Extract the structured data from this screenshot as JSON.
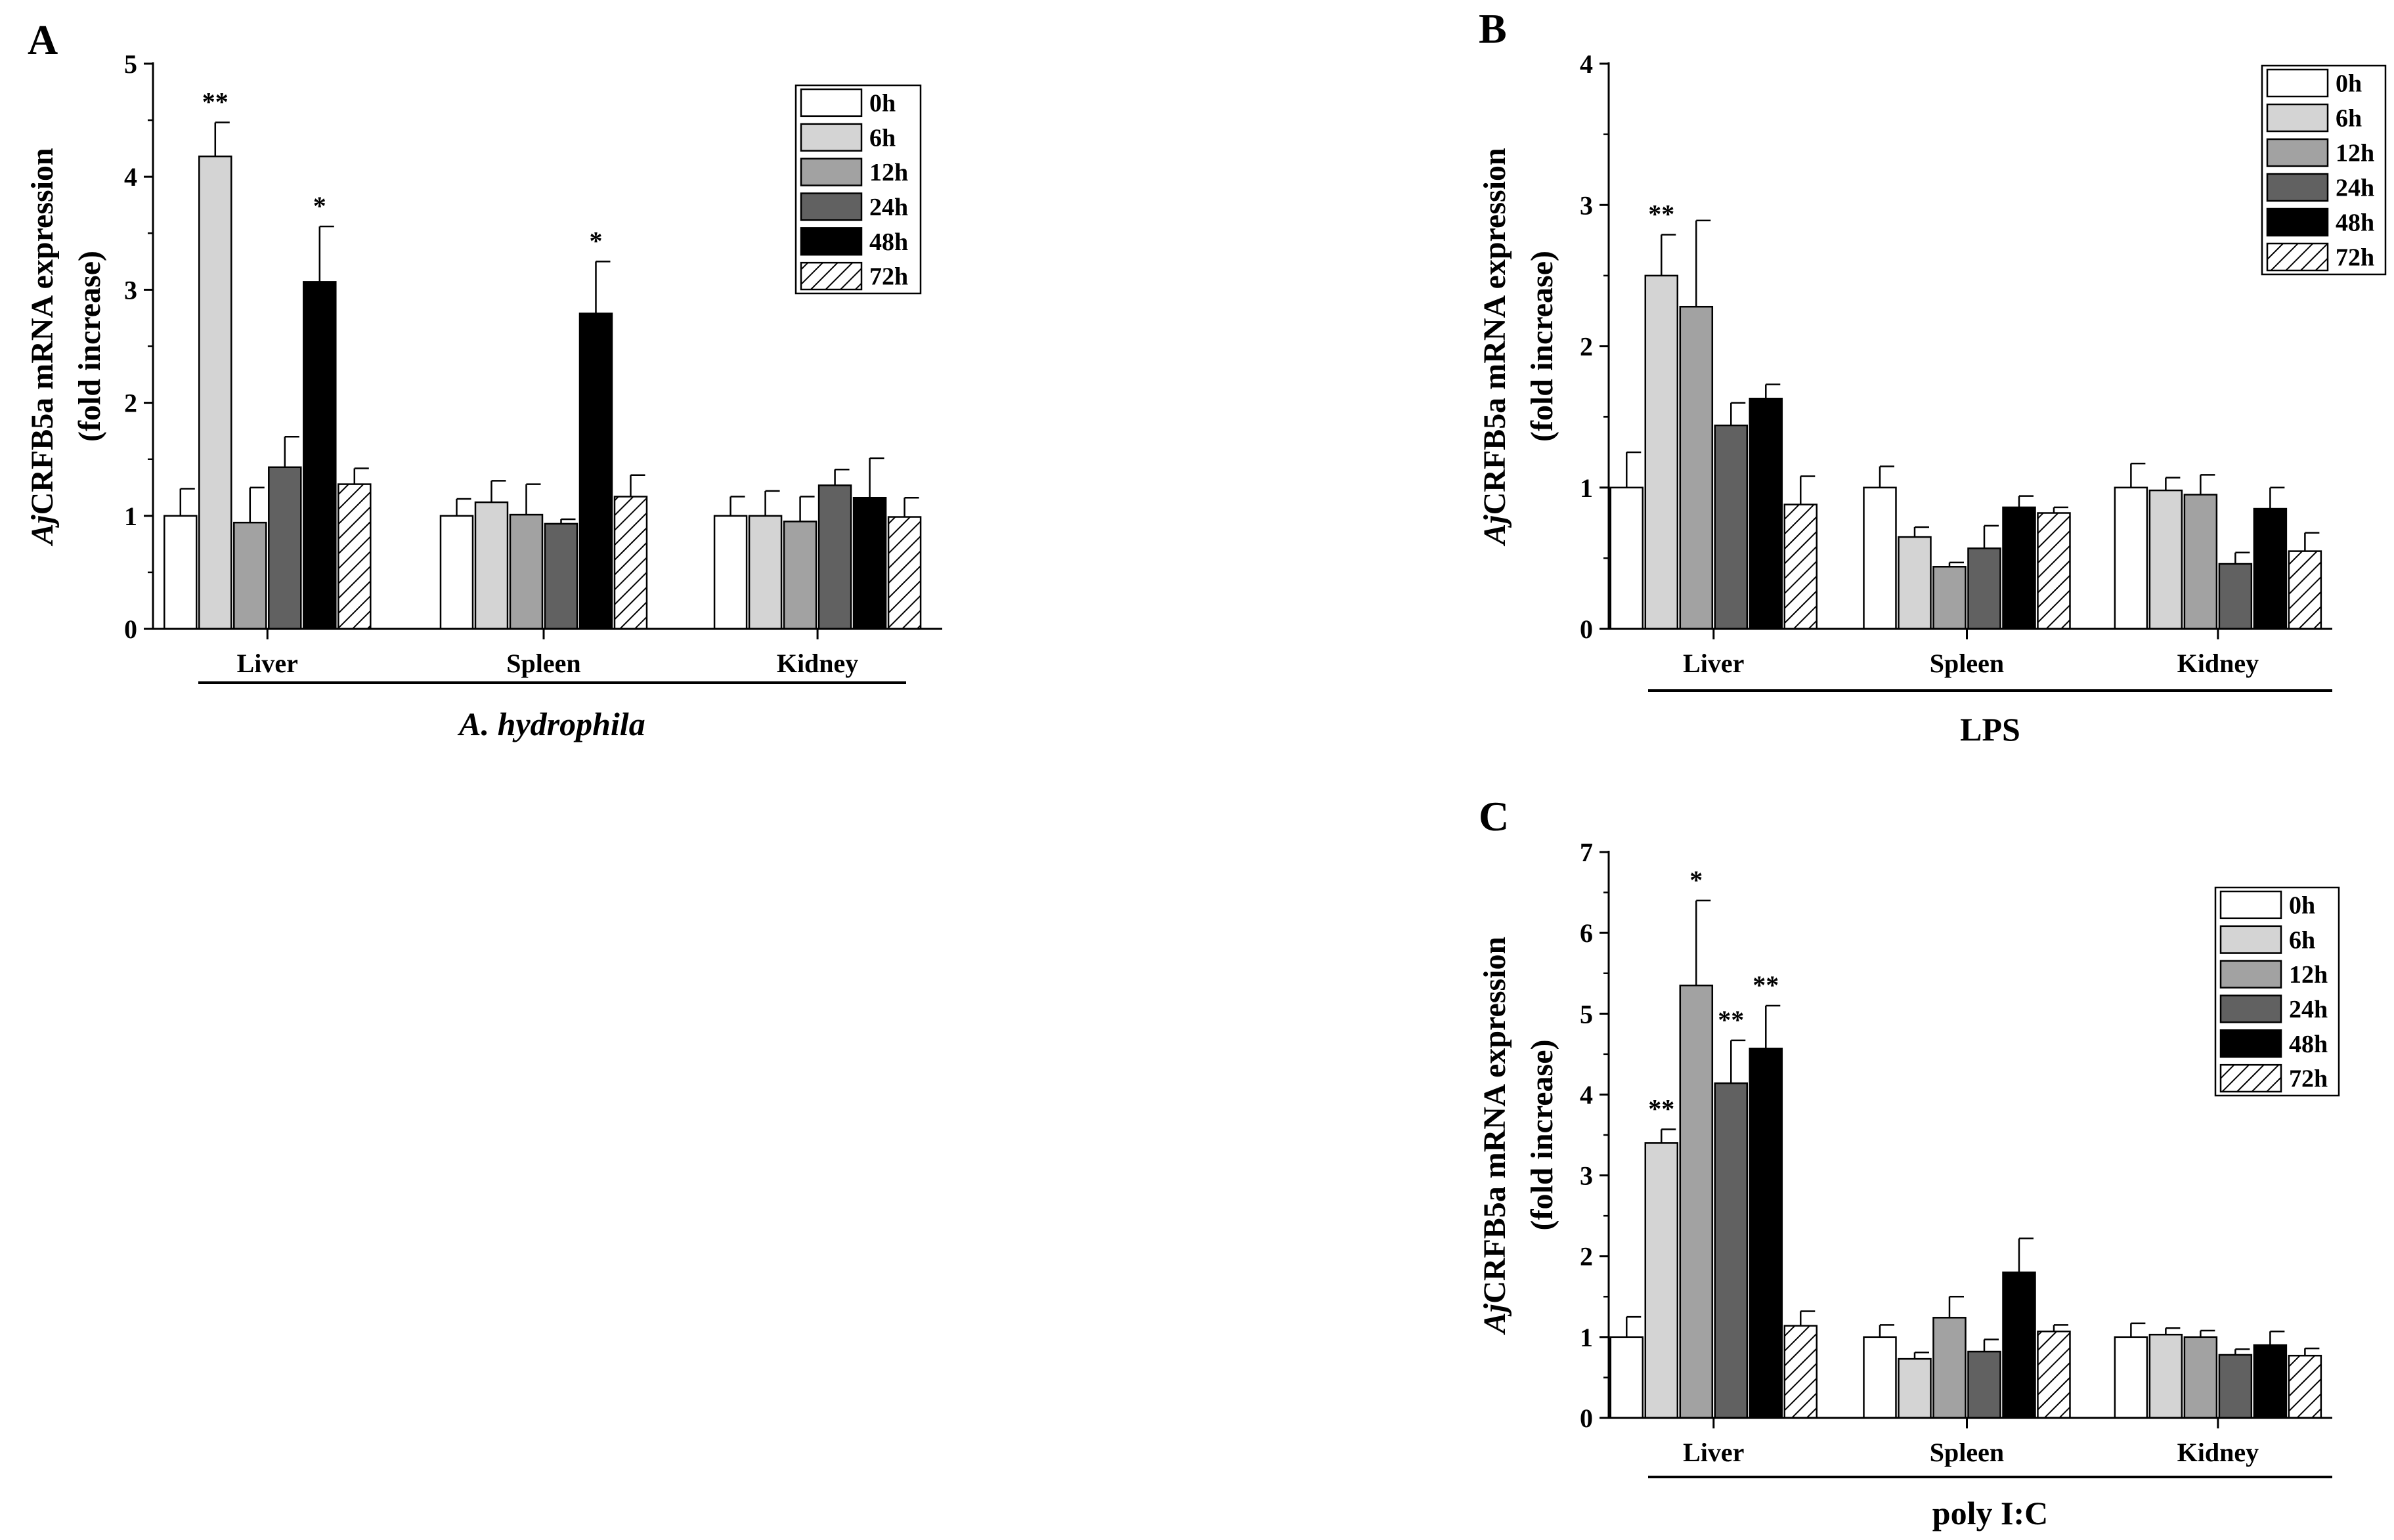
{
  "figure": {
    "series_names": [
      "0h",
      "6h",
      "12h",
      "24h",
      "48h",
      "72h"
    ],
    "series_colors": [
      "#ffffff",
      "#d4d4d4",
      "#a2a2a2",
      "#616161",
      "#000000",
      "hatch"
    ],
    "ylabel_italic": "Aj",
    "ylabel_rest": "CRFB5a mRNA expression",
    "ylabel_line2": "(fold increase)"
  },
  "chart_data": [
    {
      "panel": "A",
      "type": "bar",
      "treatment": "A. hydrophila",
      "treatment_italic": true,
      "categories": [
        "Liver",
        "Spleen",
        "Kidney"
      ],
      "ylim": [
        0,
        5
      ],
      "yticks": [
        "0",
        "1",
        "2",
        "3",
        "4",
        "5"
      ],
      "series": [
        {
          "name": "0h",
          "values": [
            1.0,
            1.0,
            1.0
          ],
          "errors": [
            0.24,
            0.15,
            0.17
          ]
        },
        {
          "name": "6h",
          "values": [
            4.18,
            1.12,
            1.0
          ],
          "errors": [
            0.3,
            0.19,
            0.22
          ]
        },
        {
          "name": "12h",
          "values": [
            0.94,
            1.01,
            0.95
          ],
          "errors": [
            0.31,
            0.27,
            0.22
          ]
        },
        {
          "name": "24h",
          "values": [
            1.43,
            0.93,
            1.27
          ],
          "errors": [
            0.27,
            0.04,
            0.14
          ]
        },
        {
          "name": "48h",
          "values": [
            3.07,
            2.79,
            1.16
          ],
          "errors": [
            0.49,
            0.46,
            0.35
          ]
        },
        {
          "name": "72h",
          "values": [
            1.28,
            1.17,
            0.99
          ],
          "errors": [
            0.14,
            0.19,
            0.17
          ]
        }
      ],
      "annotations": [
        {
          "category": "Liver",
          "series": "6h",
          "text": "**"
        },
        {
          "category": "Liver",
          "series": "48h",
          "text": "*"
        },
        {
          "category": "Spleen",
          "series": "48h",
          "text": "*"
        }
      ],
      "legend": "top-right"
    },
    {
      "panel": "B",
      "type": "bar",
      "treatment": "LPS",
      "treatment_italic": false,
      "categories": [
        "Liver",
        "Spleen",
        "Kidney"
      ],
      "ylim": [
        0,
        4
      ],
      "yticks": [
        "0",
        "1",
        "2",
        "3",
        "4"
      ],
      "series": [
        {
          "name": "0h",
          "values": [
            1.0,
            1.0,
            1.0
          ],
          "errors": [
            0.25,
            0.15,
            0.17
          ]
        },
        {
          "name": "6h",
          "values": [
            2.5,
            0.65,
            0.98
          ],
          "errors": [
            0.29,
            0.07,
            0.09
          ]
        },
        {
          "name": "12h",
          "values": [
            2.28,
            0.44,
            0.95
          ],
          "errors": [
            0.61,
            0.03,
            0.14
          ]
        },
        {
          "name": "24h",
          "values": [
            1.44,
            0.57,
            0.46
          ],
          "errors": [
            0.16,
            0.16,
            0.08
          ]
        },
        {
          "name": "48h",
          "values": [
            1.63,
            0.86,
            0.85
          ],
          "errors": [
            0.1,
            0.08,
            0.15
          ]
        },
        {
          "name": "72h",
          "values": [
            0.88,
            0.82,
            0.55
          ],
          "errors": [
            0.2,
            0.04,
            0.13
          ]
        }
      ],
      "annotations": [
        {
          "category": "Liver",
          "series": "6h",
          "text": "**"
        }
      ],
      "legend": "top-right"
    },
    {
      "panel": "C",
      "type": "bar",
      "treatment": "poly I:C",
      "treatment_italic": false,
      "categories": [
        "Liver",
        "Spleen",
        "Kidney"
      ],
      "ylim": [
        0,
        7
      ],
      "yticks": [
        "0",
        "1",
        "2",
        "3",
        "4",
        "5",
        "6",
        "7"
      ],
      "series": [
        {
          "name": "0h",
          "values": [
            1.0,
            1.0,
            1.0
          ],
          "errors": [
            0.25,
            0.15,
            0.17
          ]
        },
        {
          "name": "6h",
          "values": [
            3.4,
            0.73,
            1.03
          ],
          "errors": [
            0.17,
            0.08,
            0.08
          ]
        },
        {
          "name": "12h",
          "values": [
            5.35,
            1.24,
            1.0
          ],
          "errors": [
            1.05,
            0.26,
            0.08
          ]
        },
        {
          "name": "24h",
          "values": [
            4.14,
            0.82,
            0.78
          ],
          "errors": [
            0.53,
            0.15,
            0.07
          ]
        },
        {
          "name": "48h",
          "values": [
            4.57,
            1.8,
            0.9
          ],
          "errors": [
            0.53,
            0.42,
            0.17
          ]
        },
        {
          "name": "72h",
          "values": [
            1.14,
            1.07,
            0.77
          ],
          "errors": [
            0.18,
            0.08,
            0.09
          ]
        }
      ],
      "annotations": [
        {
          "category": "Liver",
          "series": "6h",
          "text": "**"
        },
        {
          "category": "Liver",
          "series": "12h",
          "text": "*"
        },
        {
          "category": "Liver",
          "series": "24h",
          "text": "**"
        },
        {
          "category": "Liver",
          "series": "48h",
          "text": "**"
        }
      ],
      "legend": "top-right"
    }
  ]
}
